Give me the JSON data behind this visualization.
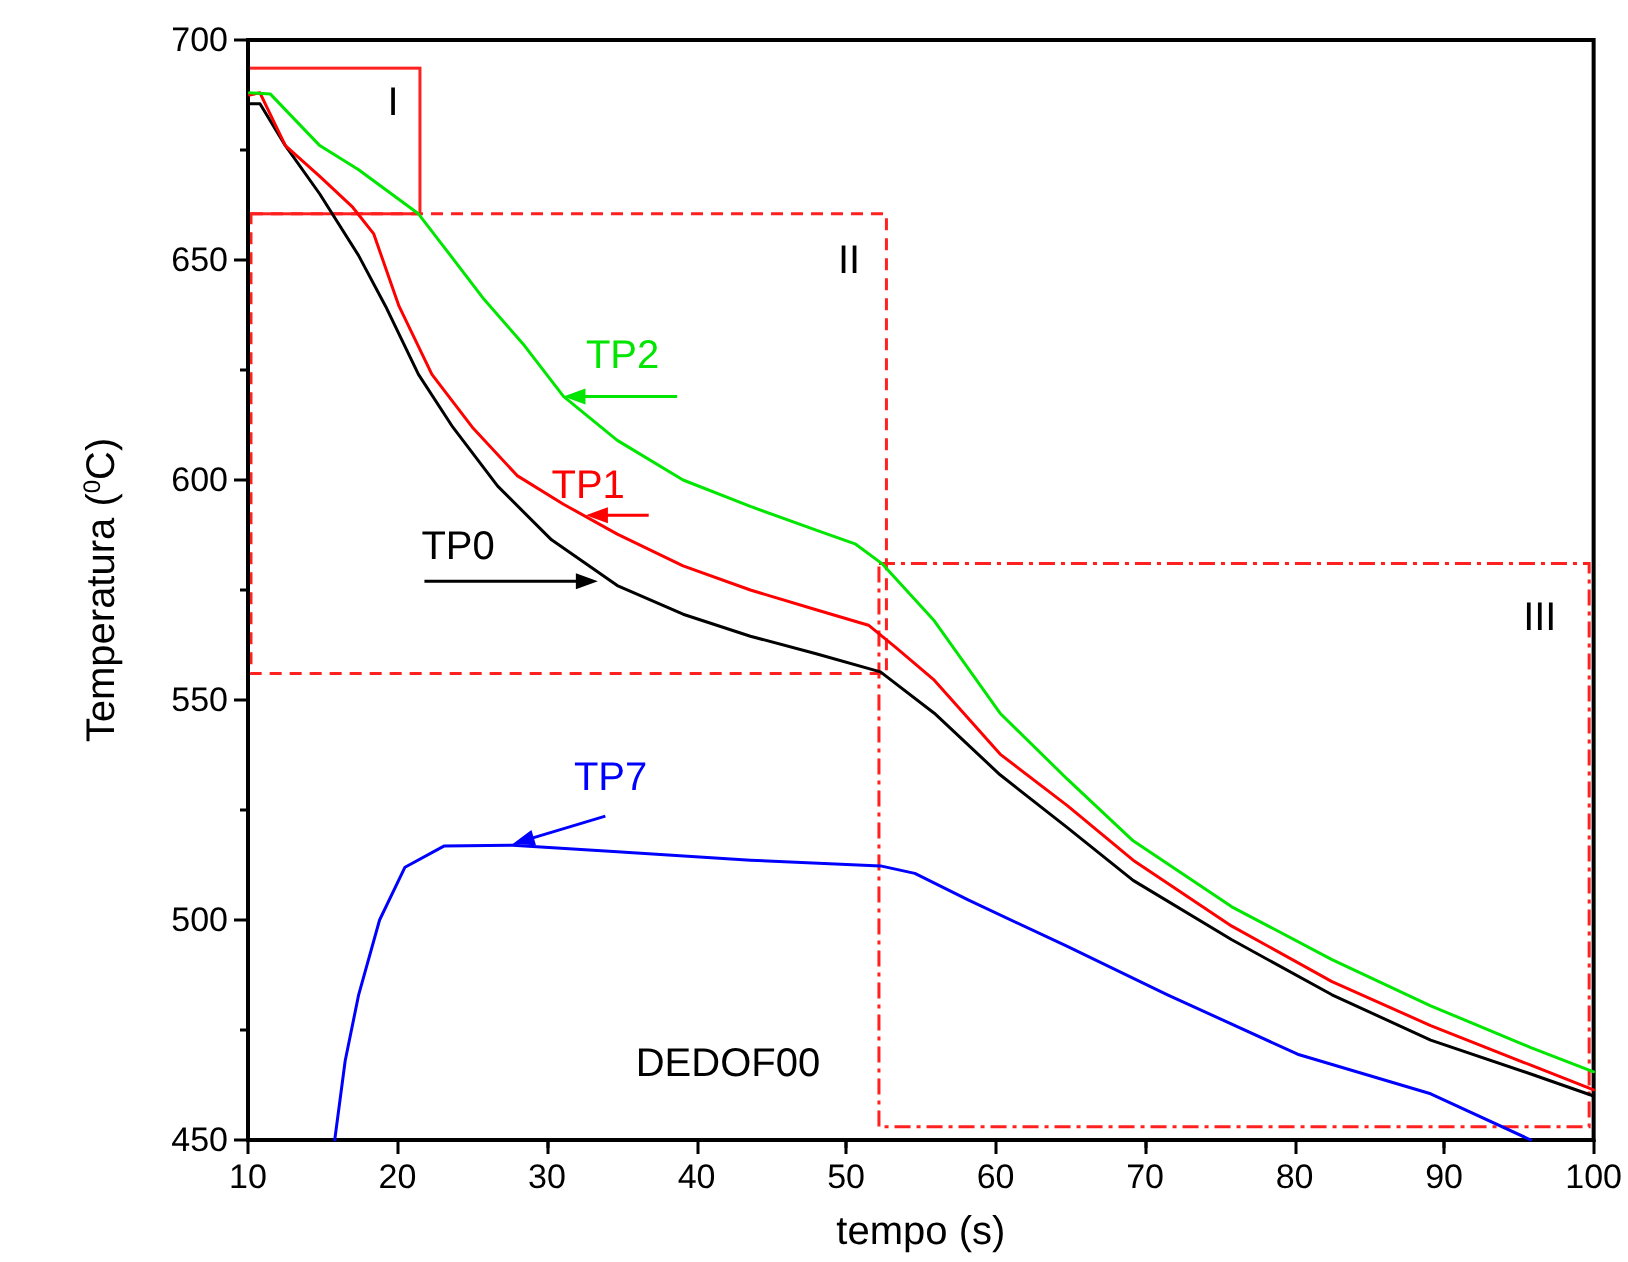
{
  "chart_data": {
    "type": "line",
    "xlabel": "tempo (s)",
    "ylabel": "Temperatura ($^{0}$C)",
    "xlim": [
      10,
      100
    ],
    "xticks": [
      10,
      20,
      30,
      40,
      50,
      60,
      70,
      80,
      90,
      100
    ],
    "ylim": [
      450,
      700
    ],
    "yticks": [
      450,
      500,
      550,
      600,
      650,
      700
    ],
    "grid": false,
    "legend": false,
    "marker": "none",
    "line_style": "solid",
    "annotations": [
      "I",
      "II",
      "III",
      "DEDOF00"
    ],
    "series": [
      {
        "name": "TP0",
        "color": "#000000",
        "x": [
          10.1,
          10.8,
          12.5,
          14.8,
          17.4,
          19.2,
          21.4,
          23.7,
          26.7,
          30.3,
          34.7,
          39.1,
          43.6,
          48,
          52.3,
          55.9,
          60.3,
          64.8,
          69.2,
          75.8,
          82.5,
          89.1,
          95.8,
          100
        ],
        "values": [
          685.5,
          685.5,
          676,
          665,
          651,
          639.5,
          624,
          612,
          598.6,
          586.4,
          576,
          569.5,
          564.5,
          560.5,
          556.4,
          547,
          533,
          521,
          509,
          495.5,
          483,
          472.7,
          465,
          460
        ]
      },
      {
        "name": "TP1",
        "color": "#ff0000",
        "x": [
          10.1,
          10.8,
          12.5,
          14.8,
          17,
          18.4,
          20.1,
          22.3,
          25,
          28,
          31.1,
          34.7,
          39.1,
          43.6,
          48,
          51.5,
          53.3,
          55.9,
          60.3,
          64.8,
          69.2,
          75.8,
          82.5,
          89.1,
          95.8,
          100
        ],
        "values": [
          687.5,
          688,
          676,
          669,
          662,
          656,
          639.5,
          624,
          612,
          601,
          594.5,
          587.7,
          580.5,
          575,
          570.5,
          567,
          562,
          554.5,
          537.7,
          526,
          513.6,
          498.6,
          486,
          476,
          467,
          461.4
        ]
      },
      {
        "name": "TP2",
        "color": "#00e600",
        "x": [
          10.1,
          11.5,
          14.8,
          17.4,
          21.4,
          23.1,
          25.8,
          28.5,
          31.1,
          34.7,
          39.1,
          43.6,
          48,
          50.6,
          52.4,
          55.9,
          60.3,
          64.8,
          69.2,
          75.8,
          82.5,
          89.1,
          95.8,
          100
        ],
        "values": [
          688,
          687.7,
          676,
          670.5,
          660.5,
          653,
          641,
          630.5,
          619,
          609,
          600,
          594,
          588.6,
          585.5,
          581,
          568,
          547,
          532,
          518,
          503,
          491,
          480.5,
          471,
          465.5
        ]
      },
      {
        "name": "TP7",
        "color": "#0000ff",
        "x": [
          15.8,
          16.5,
          17.4,
          18.8,
          20.5,
          23.1,
          27.7,
          34.7,
          43.6,
          52.3,
          54.6,
          58.2,
          64.8,
          71.5,
          80.2,
          89.1,
          95.8
        ],
        "values": [
          450,
          468,
          483,
          500,
          512,
          516.8,
          517,
          515.5,
          513.6,
          512.3,
          510.6,
          504.5,
          494,
          483,
          469.5,
          460.5,
          450
        ]
      }
    ]
  }
}
